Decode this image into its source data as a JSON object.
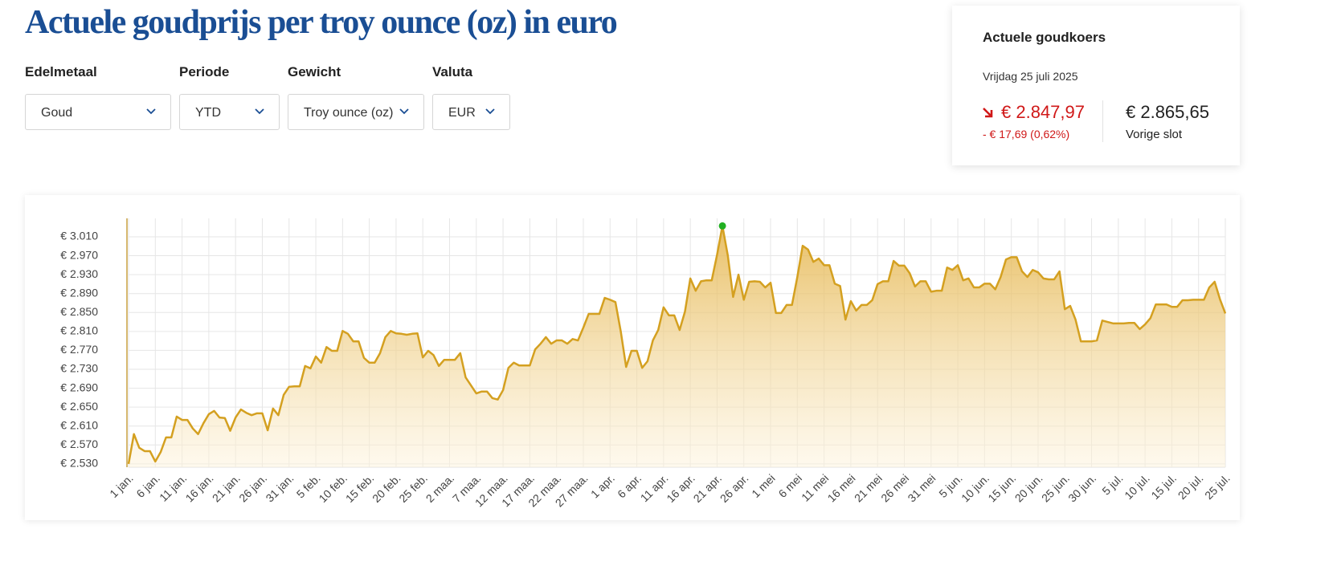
{
  "header": {
    "title": "Actuele goudprijs per troy ounce (oz) in euro"
  },
  "filters": [
    {
      "label": "Edelmetaal",
      "value": "Goud"
    },
    {
      "label": "Periode",
      "value": "YTD"
    },
    {
      "label": "Gewicht",
      "value": "Troy ounce (oz)"
    },
    {
      "label": "Valuta",
      "value": "EUR"
    }
  ],
  "price_card": {
    "title": "Actuele goudkoers",
    "date": "Vrijdag 25 juli 2025",
    "price": "€ 2.847,97",
    "change": "- € 17,69 (0,62%)",
    "previous": "€ 2.865,65",
    "previous_label": "Vorige slot"
  },
  "chart_data": {
    "type": "area",
    "color": "#d4a020",
    "highlight_color": "#22b022",
    "grid": true,
    "x": [
      0,
      1,
      2,
      3,
      4,
      5,
      6,
      7,
      8,
      9,
      10,
      11,
      12,
      13,
      14,
      15,
      16,
      17,
      18,
      19,
      20,
      21,
      22,
      23,
      24,
      25,
      26,
      27,
      28,
      29,
      30,
      31,
      32,
      33,
      34,
      35,
      36,
      37,
      38,
      39,
      40,
      41,
      42,
      43,
      44,
      45,
      46,
      47,
      48,
      49,
      50,
      51,
      52,
      53,
      54,
      55,
      56,
      57,
      58,
      59,
      60,
      61,
      62,
      63,
      64,
      65,
      66,
      67,
      68,
      69,
      70,
      71,
      72,
      73,
      74,
      75,
      76,
      77,
      78,
      79,
      80,
      81,
      82,
      83,
      84,
      85,
      86,
      87,
      88,
      89,
      90,
      91,
      92,
      93,
      94,
      95,
      96,
      97,
      98,
      99,
      100,
      101,
      102,
      103,
      104,
      105,
      106,
      107,
      108,
      109,
      110,
      111,
      112,
      113,
      114,
      115,
      116,
      117,
      118,
      119,
      120,
      121,
      122,
      123,
      124,
      125,
      126,
      127,
      128,
      129,
      130,
      131,
      132,
      133,
      134,
      135,
      136,
      137,
      138,
      139,
      140,
      141,
      142,
      143,
      144,
      145,
      146,
      147,
      148,
      149,
      150,
      151,
      152,
      153,
      154,
      155,
      156,
      157,
      158,
      159,
      160,
      161,
      162,
      163,
      164,
      165,
      166,
      167,
      168,
      169,
      170,
      171,
      172,
      173,
      174,
      175,
      176,
      177,
      178,
      179,
      180,
      181,
      182,
      183,
      184,
      185,
      186,
      187,
      188,
      189,
      190,
      191,
      192,
      193,
      194,
      195,
      196,
      197,
      198,
      199,
      200,
      201,
      202,
      203,
      204,
      205
    ],
    "values": [
      2530,
      2593,
      2564,
      2557,
      2557,
      2535,
      2555,
      2586,
      2586,
      2630,
      2623,
      2623,
      2605,
      2593,
      2616,
      2635,
      2642,
      2628,
      2627,
      2600,
      2628,
      2645,
      2638,
      2633,
      2637,
      2637,
      2601,
      2647,
      2633,
      2676,
      2693,
      2694,
      2694,
      2737,
      2732,
      2757,
      2744,
      2777,
      2769,
      2769,
      2811,
      2805,
      2789,
      2789,
      2754,
      2744,
      2744,
      2764,
      2798,
      2811,
      2806,
      2805,
      2803,
      2805,
      2806,
      2755,
      2769,
      2760,
      2737,
      2750,
      2750,
      2750,
      2764,
      2713,
      2696,
      2679,
      2683,
      2683,
      2669,
      2666,
      2686,
      2733,
      2744,
      2738,
      2738,
      2738,
      2772,
      2784,
      2798,
      2784,
      2791,
      2791,
      2784,
      2794,
      2791,
      2818,
      2847,
      2847,
      2847,
      2881,
      2877,
      2872,
      2810,
      2735,
      2769,
      2769,
      2733,
      2747,
      2791,
      2813,
      2861,
      2844,
      2844,
      2813,
      2852,
      2922,
      2896,
      2916,
      2918,
      2918,
      2972,
      3033,
      2971,
      2883,
      2930,
      2877,
      2915,
      2916,
      2915,
      2903,
      2913,
      2849,
      2849,
      2866,
      2866,
      2925,
      2991,
      2983,
      2957,
      2964,
      2950,
      2950,
      2911,
      2906,
      2835,
      2874,
      2854,
      2866,
      2866,
      2876,
      2910,
      2916,
      2916,
      2959,
      2949,
      2949,
      2933,
      2905,
      2916,
      2916,
      2894,
      2896,
      2896,
      2945,
      2940,
      2950,
      2918,
      2922,
      2903,
      2903,
      2911,
      2911,
      2899,
      2925,
      2962,
      2967,
      2967,
      2937,
      2925,
      2940,
      2935,
      2922,
      2920,
      2920,
      2937,
      2857,
      2864,
      2835,
      2789,
      2789,
      2789,
      2791,
      2833,
      2830,
      2827,
      2827,
      2827,
      2828,
      2828,
      2815,
      2825,
      2838,
      2867,
      2867,
      2867,
      2862,
      2862,
      2876,
      2876,
      2877,
      2877,
      2877,
      2903,
      2915,
      2878,
      2848
    ],
    "xlim": [
      0,
      205
    ],
    "xticks": [
      {
        "value": 0,
        "label": "1 jan."
      },
      {
        "value": 5,
        "label": "6 jan."
      },
      {
        "value": 10,
        "label": "11 jan."
      },
      {
        "value": 15,
        "label": "16 jan."
      },
      {
        "value": 20,
        "label": "21 jan."
      },
      {
        "value": 25,
        "label": "26 jan."
      },
      {
        "value": 30,
        "label": "31 jan."
      },
      {
        "value": 35,
        "label": "5 feb."
      },
      {
        "value": 40,
        "label": "10 feb."
      },
      {
        "value": 45,
        "label": "15 feb."
      },
      {
        "value": 50,
        "label": "20 feb."
      },
      {
        "value": 55,
        "label": "25 feb."
      },
      {
        "value": 60,
        "label": "2 maa."
      },
      {
        "value": 65,
        "label": "7 maa."
      },
      {
        "value": 70,
        "label": "12 maa."
      },
      {
        "value": 75,
        "label": "17 maa."
      },
      {
        "value": 80,
        "label": "22 maa."
      },
      {
        "value": 85,
        "label": "27 maa."
      },
      {
        "value": 90,
        "label": "1 apr."
      },
      {
        "value": 95,
        "label": "6 apr."
      },
      {
        "value": 100,
        "label": "11 apr."
      },
      {
        "value": 105,
        "label": "16 apr."
      },
      {
        "value": 110,
        "label": "21 apr."
      },
      {
        "value": 115,
        "label": "26 apr."
      },
      {
        "value": 120,
        "label": "1 mei"
      },
      {
        "value": 125,
        "label": "6 mei"
      },
      {
        "value": 130,
        "label": "11 mei"
      },
      {
        "value": 135,
        "label": "16 mei"
      },
      {
        "value": 140,
        "label": "21 mei"
      },
      {
        "value": 145,
        "label": "26 mei"
      },
      {
        "value": 150,
        "label": "31 mei"
      },
      {
        "value": 155,
        "label": "5 jun."
      },
      {
        "value": 160,
        "label": "10 jun."
      },
      {
        "value": 165,
        "label": "15 jun."
      },
      {
        "value": 170,
        "label": "20 jun."
      },
      {
        "value": 175,
        "label": "25 jun."
      },
      {
        "value": 180,
        "label": "30 jun."
      },
      {
        "value": 185,
        "label": "5 jul."
      },
      {
        "value": 190,
        "label": "10 jul."
      },
      {
        "value": 195,
        "label": "15 jul."
      },
      {
        "value": 200,
        "label": "20 jul."
      },
      {
        "value": 205,
        "label": "25 jul."
      }
    ],
    "ylim": [
      2523,
      3049
    ],
    "yticks": [
      {
        "value": 2530,
        "label": "€ 2.530"
      },
      {
        "value": 2570,
        "label": "€ 2.570"
      },
      {
        "value": 2610,
        "label": "€ 2.610"
      },
      {
        "value": 2650,
        "label": "€ 2.650"
      },
      {
        "value": 2690,
        "label": "€ 2.690"
      },
      {
        "value": 2730,
        "label": "€ 2.730"
      },
      {
        "value": 2770,
        "label": "€ 2.770"
      },
      {
        "value": 2810,
        "label": "€ 2.810"
      },
      {
        "value": 2850,
        "label": "€ 2.850"
      },
      {
        "value": 2890,
        "label": "€ 2.890"
      },
      {
        "value": 2930,
        "label": "€ 2.930"
      },
      {
        "value": 2970,
        "label": "€ 2.970"
      },
      {
        "value": 3010,
        "label": "€ 3.010"
      }
    ]
  }
}
